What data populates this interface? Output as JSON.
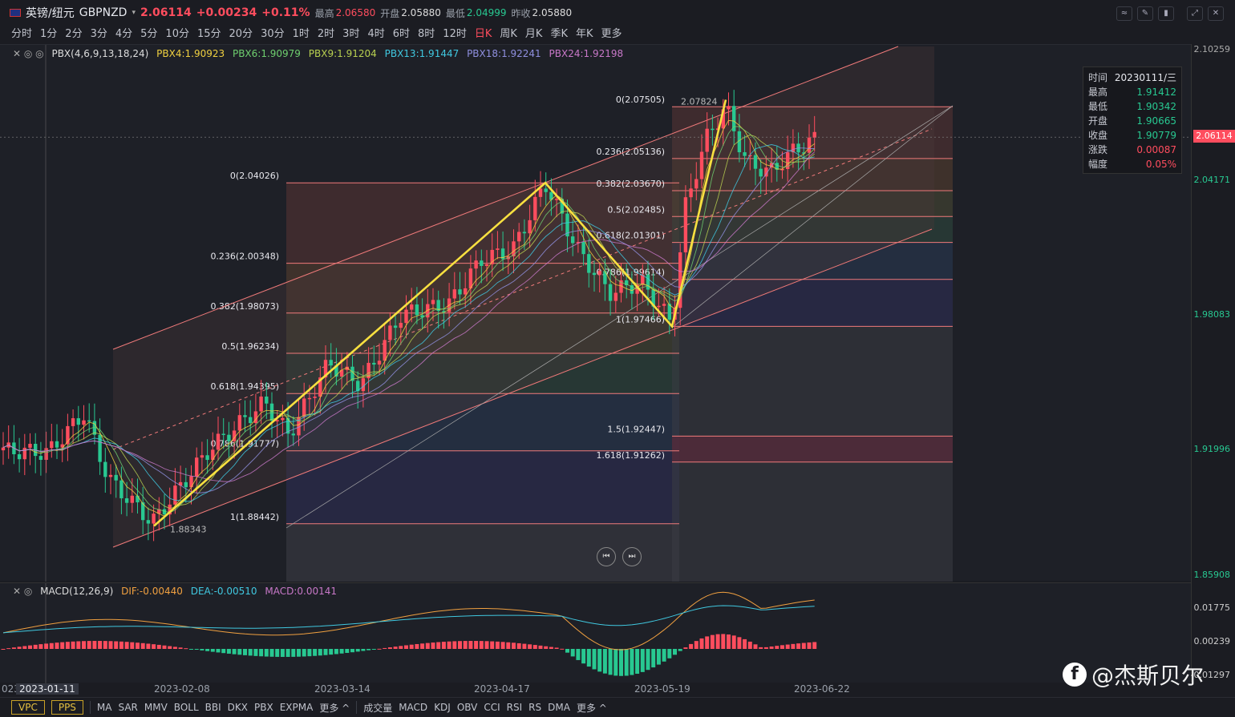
{
  "header": {
    "symbol": "英镑/纽元",
    "code": "GBPNZD",
    "price": "2.06114",
    "change": "+0.00234",
    "change_pct": "+0.11%",
    "high_label": "最高",
    "high": "2.06580",
    "open_label": "开盘",
    "open": "2.05880",
    "low_label": "最低",
    "low": "2.04999",
    "prev_label": "昨收",
    "prev": "2.05880"
  },
  "periods": [
    "分时",
    "1分",
    "2分",
    "3分",
    "4分",
    "5分",
    "10分",
    "15分",
    "20分",
    "30分",
    "1时",
    "2时",
    "3时",
    "4时",
    "6时",
    "8时",
    "12时",
    "日K",
    "周K",
    "月K",
    "季K",
    "年K",
    "更多"
  ],
  "active_period": "日K",
  "legend": {
    "pbx": "PBX(4,6,9,13,18,24)",
    "pbx4": "PBX4:1.90923",
    "pbx6": "PBX6:1.90979",
    "pbx9": "PBX9:1.91204",
    "pbx13": "PBX13:1.91447",
    "pbx18": "PBX18:1.92241",
    "pbx24": "PBX24:1.92198"
  },
  "colors": {
    "up": "#ff4d5e",
    "down": "#28c891",
    "pbx4": "#f0d040",
    "pbx6": "#6fcf6f",
    "pbx9": "#b8d050",
    "pbx13": "#40c8e0",
    "pbx18": "#9090e0",
    "pbx24": "#c878c8",
    "fib_line": "#f07a7a",
    "zigzag": "#f8e040"
  },
  "yaxis": {
    "ticks": [
      "2.10259",
      "2.04171",
      "1.98083",
      "1.91996",
      "1.85908"
    ],
    "current": "2.06114"
  },
  "fib_left": [
    "0(2.04026)",
    "0.236(2.00348)",
    "0.382(1.98073)",
    "0.5(1.96234)",
    "0.618(1.94395)",
    "0.786(1.91777)",
    "1(1.88442)"
  ],
  "fib_right": [
    "0(2.07505)",
    "0.236(2.05136)",
    "0.382(2.03670)",
    "0.5(2.02485)",
    "0.618(2.01301)",
    "0.786(1.99614)",
    "1(1.97466)",
    "1.5(1.92447)",
    "1.618(1.91262)"
  ],
  "annotations": {
    "low": "1.88343",
    "high": "2.07824"
  },
  "infobox": [
    {
      "k": "时间",
      "v": "20230111/三"
    },
    {
      "k": "最高",
      "v": "1.91412"
    },
    {
      "k": "最低",
      "v": "1.90342"
    },
    {
      "k": "开盘",
      "v": "1.90665"
    },
    {
      "k": "收盘",
      "v": "1.90779"
    },
    {
      "k": "涨跌",
      "v": "0.00087"
    },
    {
      "k": "幅度",
      "v": "0.05%"
    }
  ],
  "macd": {
    "name": "MACD(12,26,9)",
    "dif": "DIF:-0.00440",
    "dea": "DEA:-0.00510",
    "macd": "MACD:0.00141",
    "ticks": [
      "0.01775",
      "0.00239",
      "-0.01297"
    ]
  },
  "dates": [
    "2023-01-11",
    "2023-02-08",
    "2023-03-14",
    "2023-04-17",
    "2023-05-19",
    "2023-06-22"
  ],
  "date_left_fragment": "023",
  "bottom": {
    "vpc": "VPC",
    "pps": "PPS",
    "main_inds": [
      "MA",
      "SAR",
      "MMV",
      "BOLL",
      "BBI",
      "DKX",
      "PBX",
      "EXPMA",
      "更多 ^"
    ],
    "sub_inds": [
      "成交量",
      "MACD",
      "KDJ",
      "OBV",
      "CCI",
      "RSI",
      "RS",
      "DMA",
      "更多 ^"
    ]
  },
  "watermark": "@杰斯贝尔",
  "toolbar_icons": [
    "indicator-icon",
    "draw-icon",
    "candle-icon",
    "fullscreen-icon",
    "close-icon"
  ]
}
